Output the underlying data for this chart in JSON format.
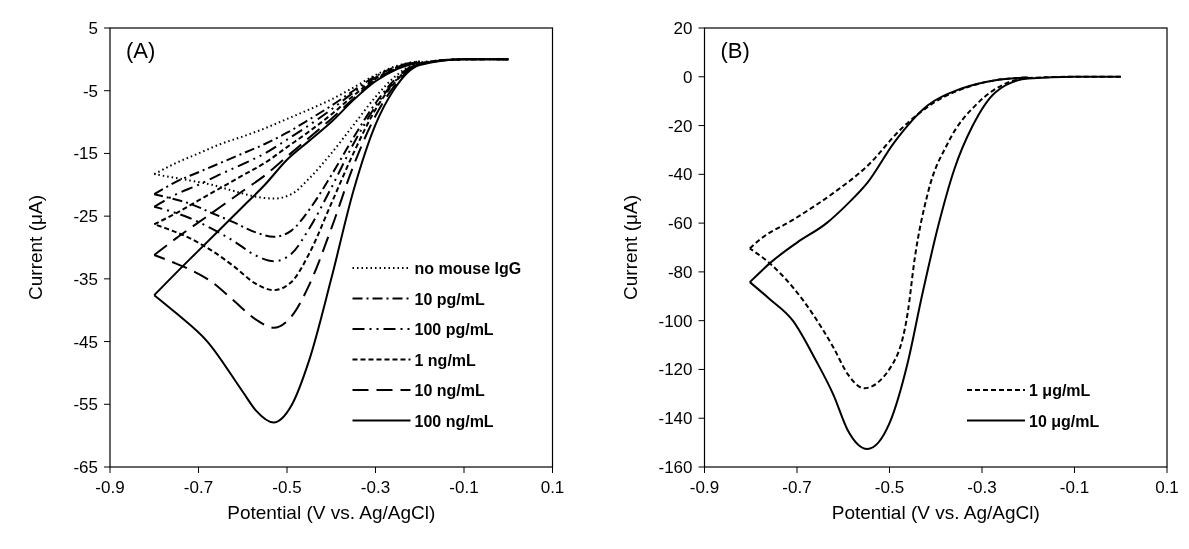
{
  "chart_data": [
    {
      "type": "line",
      "annotations": [
        "(A)"
      ],
      "xlabel": "Potential (V vs. Ag/AgCl)",
      "ylabel": "Current (μA)",
      "xlim": [
        -0.9,
        0.1
      ],
      "ylim": [
        -65,
        5
      ],
      "xticks": [
        -0.9,
        -0.7,
        -0.5,
        -0.3,
        -0.1,
        0.1
      ],
      "yticks": [
        -65,
        -55,
        -45,
        -35,
        -25,
        -15,
        -5,
        5
      ],
      "grid": false,
      "legend": "bottom right",
      "marker": "none",
      "series": [
        {
          "name": "no mouse IgG",
          "color": "#000000",
          "line_style": "dotted",
          "x": [
            0,
            -0.1,
            -0.2,
            -0.26,
            -0.3,
            -0.35,
            -0.4,
            -0.45,
            -0.49,
            -0.53,
            -0.57,
            -0.62,
            -0.67,
            -0.72,
            -0.76,
            -0.8
          ],
          "values": [
            0,
            0,
            -0.5,
            -3,
            -6,
            -10.5,
            -15,
            -19,
            -21.5,
            -22.2,
            -21.9,
            -21,
            -20,
            -19.3,
            -18.8,
            -18.3
          ]
        },
        {
          "color": "#000000",
          "line_style": "dotted",
          "x": [
            -0.8,
            -0.75,
            -0.7,
            -0.65,
            -0.6,
            -0.55,
            -0.5,
            -0.45,
            -0.4,
            -0.35,
            -0.3,
            -0.25,
            -0.2
          ],
          "values": [
            -18.3,
            -16.5,
            -15,
            -13.5,
            -12.3,
            -11,
            -9.5,
            -8,
            -6.4,
            -4.5,
            -2.5,
            -1,
            -0.3
          ]
        },
        {
          "name": "10 pg/mL",
          "color": "#000000",
          "line_style": "dashdot",
          "x": [
            0,
            -0.1,
            -0.2,
            -0.26,
            -0.3,
            -0.35,
            -0.4,
            -0.45,
            -0.49,
            -0.53,
            -0.57,
            -0.62,
            -0.67,
            -0.72,
            -0.76,
            -0.8
          ],
          "values": [
            0,
            0,
            -0.6,
            -3.5,
            -7,
            -12.5,
            -18.5,
            -24,
            -27.3,
            -28.3,
            -27.6,
            -26,
            -24.5,
            -23,
            -22.2,
            -21.5
          ]
        },
        {
          "color": "#000000",
          "line_style": "dashdot",
          "x": [
            -0.8,
            -0.75,
            -0.7,
            -0.65,
            -0.6,
            -0.55,
            -0.5,
            -0.45,
            -0.4,
            -0.35,
            -0.3,
            -0.25,
            -0.2
          ],
          "values": [
            -21.5,
            -19.5,
            -18,
            -16.5,
            -15,
            -13.5,
            -11.7,
            -9.6,
            -7.4,
            -5,
            -2.7,
            -1.1,
            -0.3
          ]
        },
        {
          "name": "100 pg/mL",
          "color": "#000000",
          "line_style": "dashdotdot",
          "x": [
            0,
            -0.1,
            -0.2,
            -0.26,
            -0.3,
            -0.35,
            -0.4,
            -0.45,
            -0.49,
            -0.53,
            -0.57,
            -0.62,
            -0.67,
            -0.72,
            -0.76,
            -0.8
          ],
          "values": [
            0,
            0,
            -0.7,
            -3.8,
            -7.5,
            -13.5,
            -20.5,
            -27,
            -31,
            -32.2,
            -31.3,
            -29,
            -27,
            -25.3,
            -24.3,
            -23.5
          ]
        },
        {
          "color": "#000000",
          "line_style": "dashdotdot",
          "x": [
            -0.8,
            -0.75,
            -0.7,
            -0.65,
            -0.6,
            -0.55,
            -0.5,
            -0.45,
            -0.4,
            -0.35,
            -0.3,
            -0.25,
            -0.2
          ],
          "values": [
            -23.5,
            -21.5,
            -20,
            -18.3,
            -16.7,
            -15,
            -12.8,
            -10.5,
            -8,
            -5.3,
            -2.9,
            -1.2,
            -0.4
          ]
        },
        {
          "name": "1 ng/mL",
          "color": "#000000",
          "line_style": "dashed",
          "x": [
            0,
            -0.1,
            -0.2,
            -0.26,
            -0.3,
            -0.35,
            -0.4,
            -0.45,
            -0.49,
            -0.53,
            -0.57,
            -0.62,
            -0.67,
            -0.72,
            -0.76,
            -0.8
          ],
          "values": [
            0,
            0,
            -0.7,
            -4,
            -8,
            -15,
            -23,
            -31,
            -35.5,
            -36.8,
            -35.8,
            -33,
            -30.5,
            -28.5,
            -27.3,
            -26.3
          ]
        },
        {
          "color": "#000000",
          "line_style": "dashed",
          "x": [
            -0.8,
            -0.75,
            -0.7,
            -0.65,
            -0.6,
            -0.55,
            -0.5,
            -0.45,
            -0.4,
            -0.35,
            -0.3,
            -0.25,
            -0.2
          ],
          "values": [
            -26.3,
            -24.5,
            -22.5,
            -20.5,
            -18.5,
            -16.5,
            -14,
            -11.5,
            -8.8,
            -5.8,
            -3.1,
            -1.3,
            -0.4
          ]
        },
        {
          "name": "10 ng/mL",
          "color": "#000000",
          "line_style": "longdashed",
          "x": [
            0,
            -0.1,
            -0.2,
            -0.26,
            -0.3,
            -0.35,
            -0.4,
            -0.45,
            -0.49,
            -0.53,
            -0.57,
            -0.62,
            -0.67,
            -0.72,
            -0.76,
            -0.8
          ],
          "values": [
            0,
            0,
            -0.8,
            -4.5,
            -9,
            -17,
            -27,
            -36,
            -41,
            -42.8,
            -41.5,
            -38.5,
            -35.5,
            -33.5,
            -32.3,
            -31.2
          ]
        },
        {
          "color": "#000000",
          "line_style": "longdashed",
          "x": [
            -0.8,
            -0.75,
            -0.7,
            -0.65,
            -0.6,
            -0.55,
            -0.5,
            -0.45,
            -0.4,
            -0.35,
            -0.3,
            -0.25,
            -0.2
          ],
          "values": [
            -31.2,
            -28.5,
            -26,
            -23.5,
            -21,
            -18.5,
            -15.5,
            -12.5,
            -9.5,
            -6.3,
            -3.3,
            -1.4,
            -0.4
          ]
        },
        {
          "name": "100 ng/mL",
          "color": "#000000",
          "line_style": "solid",
          "x": [
            0,
            -0.1,
            -0.2,
            -0.26,
            -0.3,
            -0.35,
            -0.4,
            -0.45,
            -0.49,
            -0.53,
            -0.57,
            -0.6,
            -0.68,
            -0.75,
            -0.8
          ],
          "values": [
            0,
            0,
            -0.9,
            -5,
            -10.4,
            -21,
            -35,
            -48,
            -55.2,
            -57.9,
            -56,
            -53,
            -45,
            -40.5,
            -37.6
          ]
        },
        {
          "color": "#000000",
          "line_style": "solid",
          "x": [
            -0.8,
            -0.75,
            -0.7,
            -0.65,
            -0.6,
            -0.55,
            -0.5,
            -0.45,
            -0.4,
            -0.35,
            -0.3,
            -0.25,
            -0.2
          ],
          "values": [
            -37.6,
            -34,
            -30.5,
            -27,
            -23.5,
            -20,
            -16,
            -13,
            -10,
            -6.5,
            -3.5,
            -1.5,
            -0.5
          ]
        }
      ]
    },
    {
      "type": "line",
      "annotations": [
        "(B)"
      ],
      "xlabel": "Potential (V vs. Ag/AgCl)",
      "ylabel": "Current (μA)",
      "xlim": [
        -0.9,
        0.1
      ],
      "ylim": [
        -160,
        20
      ],
      "xticks": [
        -0.9,
        -0.7,
        -0.5,
        -0.3,
        -0.1,
        0.1
      ],
      "yticks": [
        -160,
        -140,
        -120,
        -100,
        -80,
        -60,
        -40,
        -20,
        0,
        20
      ],
      "grid": false,
      "legend": "bottom right",
      "marker": "none",
      "series": [
        {
          "name": "1 μg/mL",
          "color": "#000000",
          "line_style": "dashed",
          "x": [
            0,
            -0.1,
            -0.2,
            -0.256,
            -0.307,
            -0.373,
            -0.417,
            -0.446,
            -0.46,
            -0.49,
            -0.555,
            -0.59,
            -0.621,
            -0.709,
            -0.756,
            -0.802
          ],
          "values": [
            0,
            0,
            -0.5,
            -3.4,
            -10.4,
            -26.9,
            -47.6,
            -75.2,
            -96,
            -116.7,
            -127.7,
            -122,
            -111.1,
            -86.3,
            -77,
            -70.4
          ]
        },
        {
          "color": "#000000",
          "line_style": "dashed",
          "x": [
            -0.802,
            -0.782,
            -0.709,
            -0.621,
            -0.548,
            -0.475,
            -0.402,
            -0.329,
            -0.271,
            -0.2
          ],
          "values": [
            -70.4,
            -67,
            -58.7,
            -47.6,
            -36.6,
            -21.4,
            -10.4,
            -4.1,
            -1.4,
            -0.3
          ]
        },
        {
          "name": "10 μg/mL",
          "color": "#000000",
          "line_style": "solid",
          "x": [
            0,
            -0.1,
            -0.2,
            -0.27,
            -0.32,
            -0.36,
            -0.395,
            -0.43,
            -0.46,
            -0.5,
            -0.548,
            -0.59,
            -0.621,
            -0.66,
            -0.709,
            -0.76,
            -0.802
          ],
          "values": [
            0,
            0,
            -0.7,
            -6.2,
            -20,
            -38,
            -61.4,
            -90,
            -116.7,
            -142,
            -152.6,
            -145,
            -130.5,
            -116,
            -100,
            -91,
            -84.2
          ]
        },
        {
          "color": "#000000",
          "line_style": "solid",
          "x": [
            -0.802,
            -0.756,
            -0.7,
            -0.636,
            -0.59,
            -0.548,
            -0.49,
            -0.417,
            -0.344,
            -0.271,
            -0.2
          ],
          "values": [
            -84.2,
            -76,
            -68,
            -60,
            -52,
            -43.5,
            -27,
            -11.7,
            -4.8,
            -1.4,
            -0.3
          ]
        }
      ]
    }
  ]
}
